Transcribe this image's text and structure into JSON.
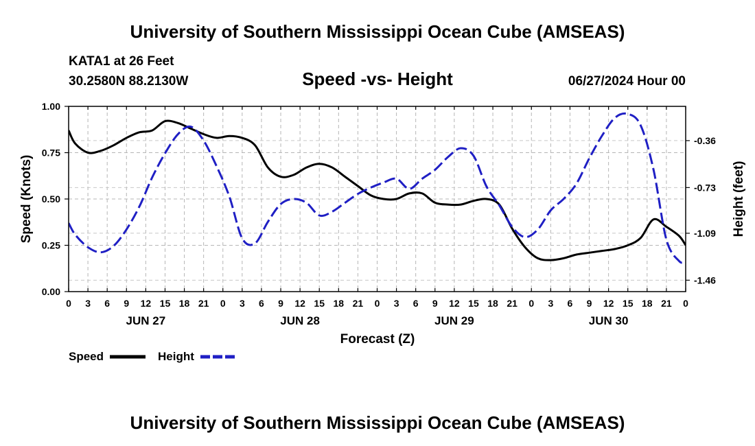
{
  "header": {
    "title": "University of Southern Mississippi Ocean Cube (AMSEAS)",
    "station": "KATA1 at 26 Feet",
    "location": "30.2580N  88.2130W",
    "datetime": "06/27/2024 Hour 00",
    "footer_title": "University of Southern Mississippi Ocean Cube (AMSEAS)"
  },
  "chart_data": {
    "type": "line",
    "title": "Speed -vs- Height",
    "xlabel": "Forecast (Z)",
    "ylabel": "Speed (Knots)",
    "y2label": "Height (feet)",
    "x_unit": "forecast hour",
    "xlim": [
      0,
      96
    ],
    "ylim": [
      0,
      1
    ],
    "y2lim": [
      -1.55,
      -0.09
    ],
    "grid": true,
    "x_ticks": [
      0,
      3,
      6,
      9,
      12,
      15,
      18,
      21,
      24,
      27,
      30,
      33,
      36,
      39,
      42,
      45,
      48,
      51,
      54,
      57,
      60,
      63,
      66,
      69,
      72,
      75,
      78,
      81,
      84,
      87,
      90,
      93,
      96
    ],
    "x_tick_labels": [
      "0",
      "3",
      "6",
      "9",
      "12",
      "15",
      "18",
      "21",
      "0",
      "3",
      "6",
      "9",
      "12",
      "15",
      "18",
      "21",
      "0",
      "3",
      "6",
      "9",
      "12",
      "15",
      "18",
      "21",
      "0",
      "3",
      "6",
      "9",
      "12",
      "15",
      "18",
      "21",
      "0"
    ],
    "date_labels": [
      {
        "hour": 12,
        "label": "JUN 27"
      },
      {
        "hour": 36,
        "label": "JUN 28"
      },
      {
        "hour": 60,
        "label": "JUN 29"
      },
      {
        "hour": 84,
        "label": "JUN 30"
      }
    ],
    "y_ticks": [
      0.0,
      0.25,
      0.5,
      0.75,
      1.0
    ],
    "y_tick_labels": [
      "0.00",
      "0.25",
      "0.50",
      "0.75",
      "1.00"
    ],
    "y2_ticks": [
      -0.36,
      -0.73,
      -1.09,
      -1.46
    ],
    "y2_tick_labels": [
      "-0.36",
      "-0.73",
      "-1.09",
      "-1.46"
    ],
    "legend": {
      "placement": "bottom-left",
      "speed_label": "Speed",
      "height_label": "Height"
    },
    "series": [
      {
        "name": "Speed",
        "axis": "left",
        "color": "#000000",
        "dash": "solid",
        "x": [
          0,
          1,
          3,
          5,
          7,
          9,
          11,
          13,
          15,
          17,
          19,
          21,
          23,
          25,
          27,
          29,
          31,
          33,
          35,
          37,
          39,
          41,
          43,
          45,
          47,
          49,
          51,
          53,
          55,
          57,
          59,
          61,
          63,
          65,
          67,
          69,
          71,
          73,
          75,
          77,
          79,
          81,
          83,
          85,
          87,
          89,
          91,
          93,
          95,
          96
        ],
        "y": [
          0.87,
          0.8,
          0.75,
          0.76,
          0.79,
          0.83,
          0.86,
          0.87,
          0.92,
          0.91,
          0.88,
          0.85,
          0.83,
          0.84,
          0.83,
          0.79,
          0.67,
          0.62,
          0.63,
          0.67,
          0.69,
          0.67,
          0.62,
          0.57,
          0.52,
          0.5,
          0.5,
          0.53,
          0.53,
          0.48,
          0.47,
          0.47,
          0.49,
          0.5,
          0.47,
          0.34,
          0.24,
          0.18,
          0.17,
          0.18,
          0.2,
          0.21,
          0.22,
          0.23,
          0.25,
          0.29,
          0.39,
          0.35,
          0.3,
          0.25
        ]
      },
      {
        "name": "Height",
        "axis": "right",
        "color": "#1f1fc4",
        "dash": "dashed",
        "x": [
          0,
          1,
          3,
          5,
          7,
          9,
          11,
          13,
          15,
          17,
          19,
          21,
          23,
          25,
          27,
          29,
          31,
          33,
          35,
          37,
          39,
          41,
          43,
          45,
          47,
          49,
          51,
          53,
          55,
          57,
          59,
          61,
          63,
          65,
          67,
          69,
          71,
          73,
          75,
          77,
          79,
          81,
          83,
          85,
          87,
          89,
          91,
          93,
          95,
          96
        ],
        "y": [
          -1.01,
          -1.1,
          -1.2,
          -1.24,
          -1.19,
          -1.06,
          -0.88,
          -0.65,
          -0.46,
          -0.31,
          -0.25,
          -0.36,
          -0.56,
          -0.8,
          -1.13,
          -1.17,
          -1.0,
          -0.86,
          -0.82,
          -0.85,
          -0.95,
          -0.92,
          -0.85,
          -0.78,
          -0.73,
          -0.69,
          -0.66,
          -0.74,
          -0.66,
          -0.59,
          -0.49,
          -0.42,
          -0.48,
          -0.72,
          -0.87,
          -1.04,
          -1.12,
          -1.06,
          -0.91,
          -0.82,
          -0.7,
          -0.5,
          -0.32,
          -0.18,
          -0.15,
          -0.24,
          -0.59,
          -1.14,
          -1.31,
          -1.31
        ]
      }
    ]
  }
}
